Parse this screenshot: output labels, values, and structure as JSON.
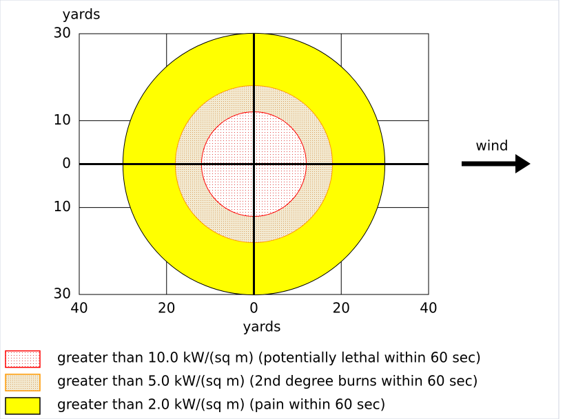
{
  "chart_data": {
    "type": "threat-zone",
    "y_label": "yards",
    "x_label": "yards",
    "annotation": "wind",
    "xlim": [
      -40,
      40
    ],
    "ylim": [
      -30,
      30
    ],
    "xticks": [
      {
        "value": -40,
        "label": "40"
      },
      {
        "value": -20,
        "label": "20"
      },
      0,
      20,
      40
    ],
    "yticks": [
      30,
      10,
      0,
      {
        "value": -10,
        "label": "10"
      },
      {
        "value": -30,
        "label": "30"
      }
    ],
    "grid": true,
    "series": [
      {
        "name": "greater than 10.0 kW/(sq m) (potentially lethal within 60 sec)",
        "color": "#ff0000",
        "value": 12
      },
      {
        "name": "greater than 5.0 kW/(sq m) (2nd degree burns within 60 sec)",
        "color": "#ff9900",
        "value": 18
      },
      {
        "name": "greater than 2.0 kW/(sq m) (pain within 60 sec)",
        "color": "#ffff00",
        "value": 30
      }
    ]
  }
}
